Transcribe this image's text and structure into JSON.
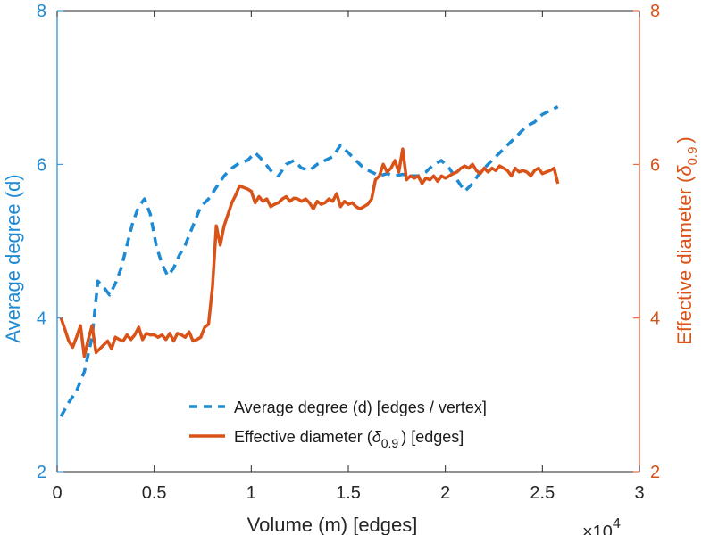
{
  "chart_data": {
    "type": "line",
    "x_exponent_label": "×10",
    "x_exponent_power": "4",
    "xlabel": "Volume (m) [edges]",
    "xlim": [
      0,
      3
    ],
    "x_ticks": [
      "0",
      "0.5",
      "1",
      "1.5",
      "2",
      "2.5",
      "3"
    ],
    "x_tick_values": [
      0,
      0.5,
      1,
      1.5,
      2,
      2.5,
      3
    ],
    "y_left": {
      "label": "Average degree (d)",
      "lim": [
        2,
        8
      ],
      "ticks": [
        "2",
        "4",
        "6",
        "8"
      ],
      "tick_values": [
        2,
        4,
        6,
        8
      ],
      "color": "#1f8ad4"
    },
    "y_right": {
      "label_prefix": "Effective diameter (",
      "label_symbol": "δ",
      "label_sub": "0.9",
      "label_suffix": ")",
      "lim": [
        2,
        8
      ],
      "ticks": [
        "2",
        "4",
        "6",
        "8"
      ],
      "tick_values": [
        2,
        4,
        6,
        8
      ],
      "color": "#d95319"
    },
    "grid": false,
    "legend_position": "bottom-right",
    "series": [
      {
        "name": "Average degree (d) [edges / vertex]",
        "axis": "left",
        "style": "dashed",
        "color": "#1f8ad4",
        "x": [
          0.02,
          0.06,
          0.1,
          0.14,
          0.18,
          0.21,
          0.24,
          0.27,
          0.3,
          0.33,
          0.36,
          0.39,
          0.42,
          0.45,
          0.48,
          0.51,
          0.54,
          0.57,
          0.6,
          0.63,
          0.66,
          0.7,
          0.74,
          0.78,
          0.82,
          0.86,
          0.9,
          0.94,
          0.98,
          1.02,
          1.06,
          1.1,
          1.14,
          1.18,
          1.22,
          1.26,
          1.3,
          1.34,
          1.38,
          1.42,
          1.46,
          1.5,
          1.54,
          1.58,
          1.62,
          1.66,
          1.7,
          1.74,
          1.78,
          1.82,
          1.86,
          1.9,
          1.94,
          1.98,
          2.02,
          2.06,
          2.1,
          2.14,
          2.18,
          2.22,
          2.26,
          2.3,
          2.34,
          2.38,
          2.42,
          2.46,
          2.5,
          2.54,
          2.58
        ],
        "y": [
          2.72,
          2.9,
          3.05,
          3.3,
          3.75,
          4.48,
          4.4,
          4.3,
          4.45,
          4.65,
          4.95,
          5.25,
          5.45,
          5.55,
          5.35,
          4.95,
          4.7,
          4.55,
          4.65,
          4.82,
          4.95,
          5.2,
          5.45,
          5.55,
          5.7,
          5.85,
          5.95,
          6.02,
          6.05,
          6.15,
          6.05,
          5.92,
          5.85,
          6.0,
          6.05,
          5.95,
          5.92,
          6.0,
          6.05,
          6.1,
          6.25,
          6.15,
          6.05,
          5.95,
          5.9,
          5.85,
          5.88,
          5.85,
          5.87,
          5.85,
          5.85,
          5.9,
          6.0,
          6.05,
          5.95,
          5.8,
          5.65,
          5.75,
          5.9,
          6.0,
          6.1,
          6.2,
          6.3,
          6.4,
          6.5,
          6.55,
          6.65,
          6.7,
          6.75
        ]
      },
      {
        "name": "Effective diameter (δ0.9) [edges]",
        "legend_prefix": "Effective diameter (",
        "legend_symbol": "δ",
        "legend_sub": "0.9",
        "legend_suffix": ") [edges]",
        "axis": "right",
        "style": "solid",
        "color": "#d95319",
        "x": [
          0.02,
          0.04,
          0.06,
          0.08,
          0.1,
          0.12,
          0.14,
          0.16,
          0.18,
          0.2,
          0.22,
          0.24,
          0.26,
          0.28,
          0.3,
          0.32,
          0.34,
          0.36,
          0.38,
          0.4,
          0.42,
          0.44,
          0.46,
          0.48,
          0.5,
          0.52,
          0.54,
          0.56,
          0.58,
          0.6,
          0.62,
          0.64,
          0.66,
          0.68,
          0.7,
          0.72,
          0.74,
          0.76,
          0.78,
          0.8,
          0.82,
          0.84,
          0.86,
          0.88,
          0.9,
          0.92,
          0.94,
          0.96,
          0.98,
          1.0,
          1.02,
          1.04,
          1.06,
          1.08,
          1.1,
          1.12,
          1.14,
          1.16,
          1.18,
          1.2,
          1.22,
          1.24,
          1.26,
          1.28,
          1.3,
          1.32,
          1.34,
          1.36,
          1.38,
          1.4,
          1.42,
          1.44,
          1.46,
          1.48,
          1.5,
          1.52,
          1.54,
          1.56,
          1.58,
          1.6,
          1.62,
          1.64,
          1.66,
          1.68,
          1.7,
          1.72,
          1.74,
          1.76,
          1.78,
          1.8,
          1.82,
          1.84,
          1.86,
          1.88,
          1.9,
          1.92,
          1.94,
          1.96,
          1.98,
          2.0,
          2.02,
          2.04,
          2.06,
          2.08,
          2.1,
          2.12,
          2.14,
          2.16,
          2.18,
          2.2,
          2.22,
          2.24,
          2.26,
          2.28,
          2.3,
          2.32,
          2.34,
          2.36,
          2.38,
          2.4,
          2.42,
          2.44,
          2.46,
          2.48,
          2.5,
          2.52,
          2.54,
          2.56,
          2.58
        ],
        "y": [
          4.0,
          3.85,
          3.7,
          3.62,
          3.75,
          3.9,
          3.5,
          3.72,
          3.9,
          3.55,
          3.6,
          3.65,
          3.7,
          3.6,
          3.75,
          3.72,
          3.7,
          3.78,
          3.72,
          3.78,
          3.88,
          3.72,
          3.8,
          3.78,
          3.78,
          3.75,
          3.78,
          3.72,
          3.8,
          3.7,
          3.8,
          3.78,
          3.75,
          3.82,
          3.7,
          3.72,
          3.75,
          3.88,
          3.92,
          4.4,
          5.2,
          4.95,
          5.2,
          5.35,
          5.5,
          5.6,
          5.72,
          5.7,
          5.68,
          5.65,
          5.5,
          5.58,
          5.52,
          5.55,
          5.45,
          5.48,
          5.5,
          5.55,
          5.58,
          5.52,
          5.56,
          5.55,
          5.52,
          5.55,
          5.5,
          5.42,
          5.52,
          5.48,
          5.5,
          5.55,
          5.52,
          5.62,
          5.45,
          5.52,
          5.48,
          5.5,
          5.45,
          5.42,
          5.45,
          5.48,
          5.55,
          5.8,
          5.85,
          6.0,
          5.9,
          5.95,
          6.05,
          5.9,
          6.2,
          5.8,
          5.85,
          5.82,
          5.85,
          5.75,
          5.82,
          5.8,
          5.85,
          5.78,
          5.85,
          5.82,
          5.85,
          5.88,
          5.9,
          5.95,
          5.98,
          5.95,
          6.0,
          5.92,
          5.88,
          5.95,
          5.9,
          5.95,
          5.92,
          5.98,
          5.95,
          5.92,
          5.85,
          5.95,
          5.9,
          5.92,
          5.9,
          5.85,
          5.92,
          5.95,
          5.88,
          5.9,
          5.92,
          5.95,
          5.75
        ]
      }
    ]
  }
}
